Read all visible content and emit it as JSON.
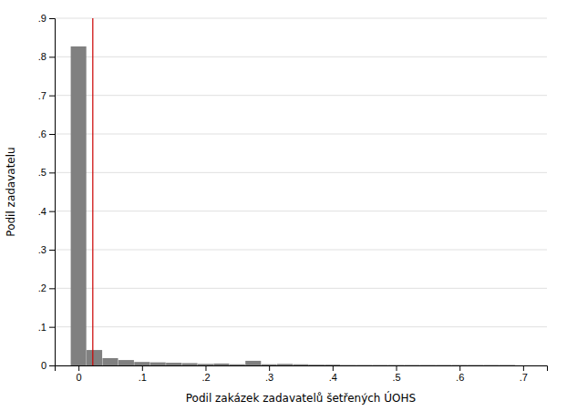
{
  "chart_data": {
    "type": "bar",
    "x_label": "Podil zakázek zadavatelů šetřených ÚOHS",
    "y_label": "Podil zadavatelu",
    "x": [
      0.0,
      0.025,
      0.05,
      0.075,
      0.1,
      0.125,
      0.15,
      0.175,
      0.2,
      0.225,
      0.25,
      0.275,
      0.3,
      0.325,
      0.35,
      0.375,
      0.4,
      0.425,
      0.45,
      0.475,
      0.5,
      0.525,
      0.55,
      0.575,
      0.6,
      0.625,
      0.65,
      0.675,
      0.7
    ],
    "values": [
      0.827,
      0.04,
      0.019,
      0.014,
      0.009,
      0.008,
      0.007,
      0.006,
      0.004,
      0.005,
      0.003,
      0.012,
      0.003,
      0.004,
      0.003,
      0.002,
      0.002,
      0.001,
      0.001,
      0.001,
      0.001,
      0.001,
      0.001,
      0.001,
      0.001,
      0.001,
      0.001,
      0.001,
      0
    ],
    "color": "#808080",
    "xlim": [
      -0.0375,
      0.7375
    ],
    "ylim": [
      0,
      0.9
    ],
    "xticks": [
      0,
      {
        "value": 0.1,
        "label": ".1"
      },
      {
        "value": 0.2,
        "label": ".2"
      },
      {
        "value": 0.3,
        "label": ".3"
      },
      {
        "value": 0.4,
        "label": ".4"
      },
      {
        "value": 0.5,
        "label": ".5"
      },
      {
        "value": 0.6,
        "label": ".6"
      },
      {
        "value": 0.7,
        "label": ".7"
      }
    ],
    "yticks": [
      0,
      {
        "value": 0.1,
        "label": ".1"
      },
      {
        "value": 0.2,
        "label": ".2"
      },
      {
        "value": 0.3,
        "label": ".3"
      },
      {
        "value": 0.4,
        "label": ".4"
      },
      {
        "value": 0.5,
        "label": ".5"
      },
      {
        "value": 0.6,
        "label": ".6"
      },
      {
        "value": 0.7,
        "label": ".7"
      },
      {
        "value": 0.8,
        "label": ".8"
      },
      {
        "value": 0.9,
        "label": ".9"
      }
    ],
    "grid": true,
    "reference_lines": [
      {
        "x": 0.0225,
        "color": "#cc0000"
      }
    ]
  }
}
